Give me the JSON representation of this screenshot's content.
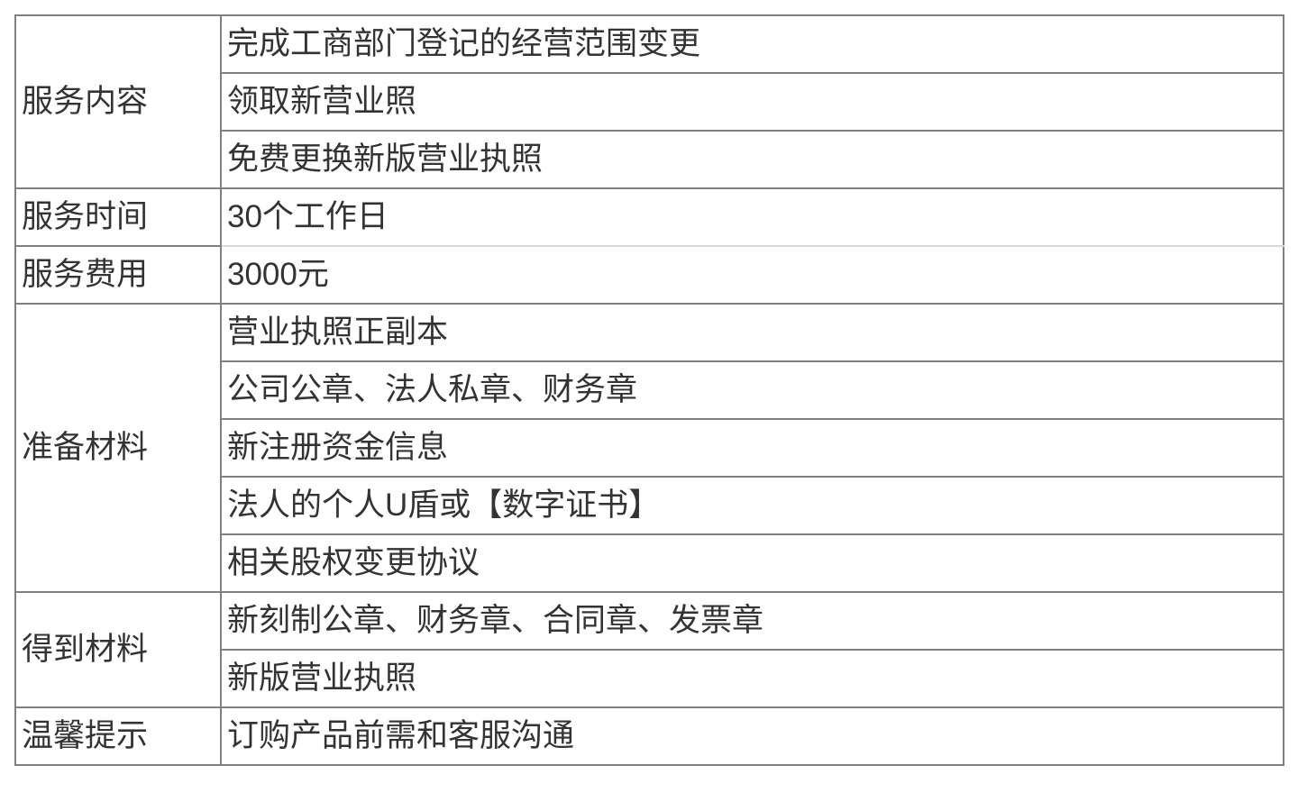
{
  "rows": [
    {
      "label": "服务内容",
      "items": [
        "完成工商部门登记的经营范围变更",
        "领取新营业照",
        "免费更换新版营业执照"
      ]
    },
    {
      "label": "服务时间",
      "items": [
        "30个工作日"
      ]
    },
    {
      "label": "服务费用",
      "items": [
        "3000元"
      ]
    },
    {
      "label": "准备材料",
      "items": [
        "营业执照正副本",
        "公司公章、法人私章、财务章",
        "新注册资金信息",
        "法人的个人U盾或【数字证书】",
        "相关股权变更协议"
      ]
    },
    {
      "label": "得到材料",
      "items": [
        "新刻制公章、财务章、合同章、发票章",
        "新版营业执照"
      ]
    },
    {
      "label": "温馨提示",
      "items": [
        "订购产品前需和客服沟通"
      ]
    }
  ]
}
